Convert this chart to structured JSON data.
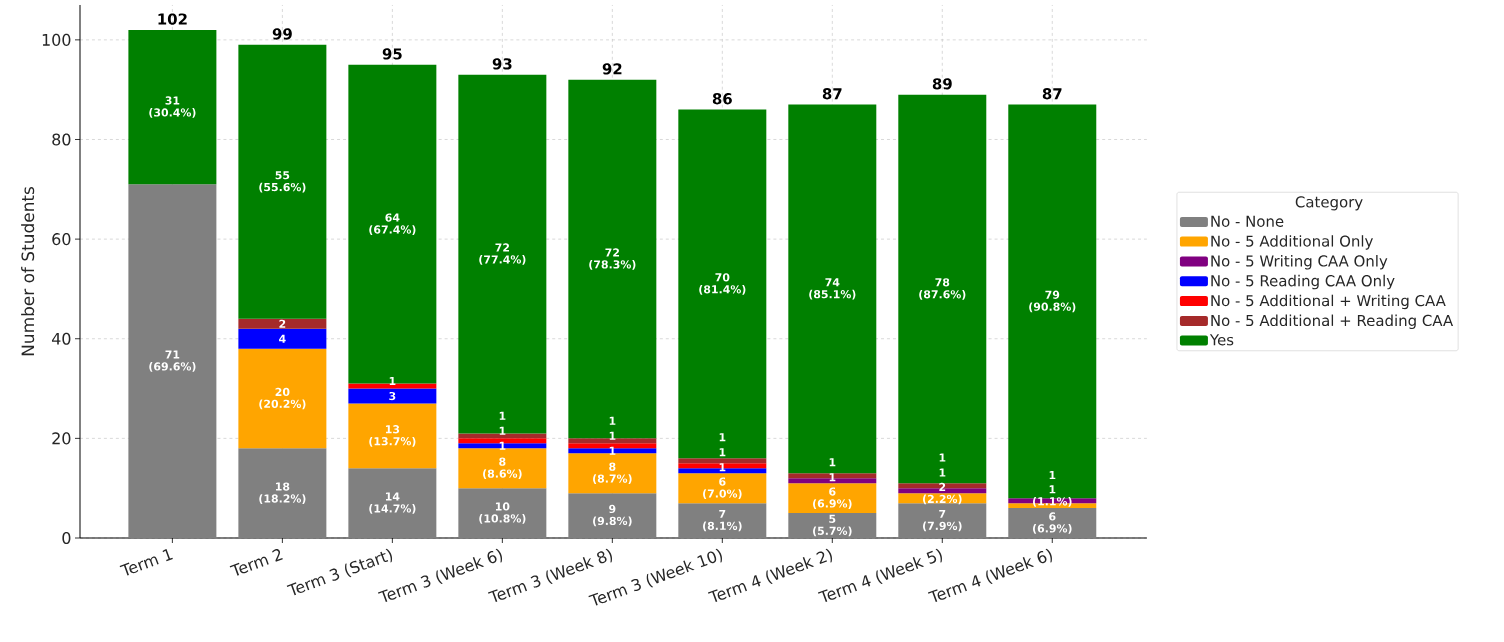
{
  "chart_data": {
    "type": "bar",
    "stacked": true,
    "ylabel": "Number of Students",
    "legend_title": "Category",
    "legend": "right",
    "grid": true,
    "categories": [
      "Term 1",
      "Term 2",
      "Term 3 (Start)",
      "Term 3 (Week 6)",
      "Term 3 (Week 8)",
      "Term 3 (Week 10)",
      "Term 4 (Week 2)",
      "Term 4 (Week 5)",
      "Term 4 (Week 6)"
    ],
    "ylim": [
      0,
      107
    ],
    "yticks": [
      0,
      20,
      40,
      60,
      80,
      100
    ],
    "series": [
      {
        "name": "No - None",
        "color": "#808080",
        "values": [
          71,
          18,
          14,
          10,
          9,
          7,
          5,
          7,
          6
        ],
        "value_labels": [
          "71 (69.6%)",
          "18 (18.2%)",
          "14 (14.7%)",
          "10 (10.8%)",
          "9 (9.8%)",
          "7 (8.1%)",
          "5 (5.7%)",
          "7 (7.9%)",
          "6 (6.9%)"
        ]
      },
      {
        "name": "No - 5 Additional Only",
        "color": "#ffa500",
        "values": [
          0,
          20,
          13,
          8,
          8,
          6,
          6,
          2,
          1
        ],
        "value_labels": [
          null,
          "20 (20.2%)",
          "13 (13.7%)",
          "8 (8.6%)",
          "8 (8.7%)",
          "6 (7.0%)",
          "6 (6.9%)",
          "2 (2.2%)",
          "1 (1.1%)"
        ]
      },
      {
        "name": "No - 5 Writing CAA Only",
        "color": "#800080",
        "values": [
          0,
          0,
          0,
          0,
          0,
          0,
          1,
          1,
          1
        ],
        "value_labels": [
          null,
          null,
          null,
          null,
          null,
          null,
          "1",
          "1",
          "1"
        ]
      },
      {
        "name": "No - 5 Reading CAA Only",
        "color": "#0000ff",
        "values": [
          0,
          4,
          3,
          1,
          1,
          1,
          0,
          0,
          0
        ],
        "value_labels": [
          null,
          "4",
          "3",
          "1",
          "1",
          "1",
          null,
          null,
          null
        ]
      },
      {
        "name": "No - 5 Additional + Writing CAA",
        "color": "#ff0000",
        "values": [
          0,
          0,
          1,
          1,
          1,
          1,
          0,
          0,
          0
        ],
        "value_labels": [
          null,
          null,
          "1",
          "1",
          "1",
          "1",
          null,
          null,
          null
        ]
      },
      {
        "name": "No - 5 Additional + Reading CAA",
        "color": "#a52a2a",
        "values": [
          0,
          2,
          0,
          1,
          1,
          1,
          1,
          1,
          0
        ],
        "value_labels": [
          null,
          "2",
          null,
          "1",
          "1",
          "1",
          "1",
          "1",
          null
        ]
      },
      {
        "name": "Yes",
        "color": "#008000",
        "values": [
          31,
          55,
          64,
          72,
          72,
          70,
          74,
          78,
          79
        ],
        "value_labels": [
          "31 (30.4%)",
          "55 (55.6%)",
          "64 (67.4%)",
          "72 (77.4%)",
          "72 (78.3%)",
          "70 (81.4%)",
          "74 (85.1%)",
          "78 (87.6%)",
          "79 (90.8%)"
        ]
      }
    ],
    "totals": [
      "102",
      "99",
      "95",
      "93",
      "92",
      "86",
      "87",
      "89",
      "87"
    ]
  }
}
